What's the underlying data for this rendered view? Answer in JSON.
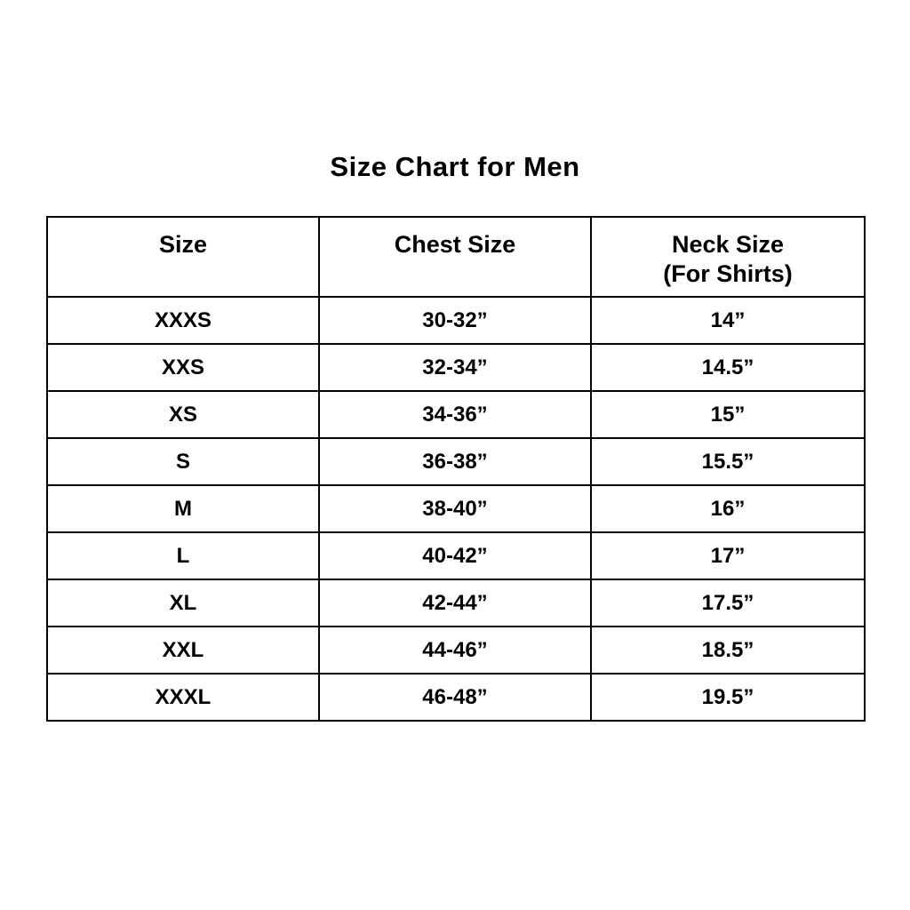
{
  "chart_data": {
    "type": "table",
    "title": "Size Chart for Men",
    "columns": [
      "Size",
      "Chest Size",
      "Neck Size (For Shirts)"
    ],
    "header_display": {
      "col1": "Size",
      "col2": "Chest Size",
      "col3_line1": "Neck Size",
      "col3_line2": "(For Shirts)"
    },
    "rows": [
      [
        "XXXS",
        "30-32”",
        "14”"
      ],
      [
        "XXS",
        "32-34”",
        "14.5”"
      ],
      [
        "XS",
        "34-36”",
        "15”"
      ],
      [
        "S",
        "36-38”",
        "15.5”"
      ],
      [
        "M",
        "38-40”",
        "16”"
      ],
      [
        "L",
        "40-42”",
        "17”"
      ],
      [
        "XL",
        "42-44”",
        "17.5”"
      ],
      [
        "XXL",
        "44-46”",
        "18.5”"
      ],
      [
        "XXXL",
        "46-48”",
        "19.5”"
      ]
    ],
    "colors": {
      "text": "#000000",
      "border": "#000000",
      "background": "#ffffff"
    }
  }
}
